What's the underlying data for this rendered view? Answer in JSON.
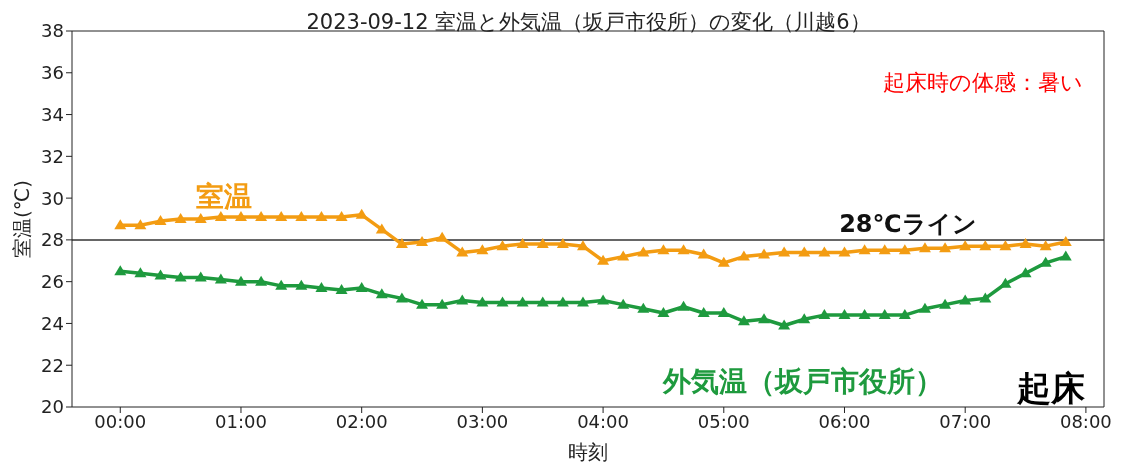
{
  "chart_data": {
    "type": "line",
    "title": "2023-09-12 室温と外気温（坂戸市役所）の変化（川越6）",
    "xlabel": "時刻",
    "ylabel": "室温(℃)",
    "x": [
      0,
      0.16667,
      0.33333,
      0.5,
      0.66667,
      0.83333,
      1,
      1.16667,
      1.33333,
      1.5,
      1.66667,
      1.83333,
      2,
      2.16667,
      2.33333,
      2.5,
      2.66667,
      2.83333,
      3,
      3.16667,
      3.33333,
      3.5,
      3.66667,
      3.83333,
      4,
      4.16667,
      4.33333,
      4.5,
      4.66667,
      4.83333,
      5,
      5.16667,
      5.33333,
      5.5,
      5.66667,
      5.83333,
      6,
      6.16667,
      6.33333,
      6.5,
      6.66667,
      6.83333,
      7,
      7.16667,
      7.33333,
      7.5,
      7.66667,
      7.83333
    ],
    "series": [
      {
        "name": "室温",
        "color": "#f39c12",
        "values": [
          28.7,
          28.7,
          28.9,
          29.0,
          29.0,
          29.1,
          29.1,
          29.1,
          29.1,
          29.1,
          29.1,
          29.1,
          29.2,
          28.5,
          27.8,
          27.9,
          28.1,
          27.4,
          27.5,
          27.7,
          27.8,
          27.8,
          27.8,
          27.7,
          27.0,
          27.2,
          27.4,
          27.5,
          27.5,
          27.3,
          26.9,
          27.2,
          27.3,
          27.4,
          27.4,
          27.4,
          27.4,
          27.5,
          27.5,
          27.5,
          27.6,
          27.6,
          27.7,
          27.7,
          27.7,
          27.8,
          27.7,
          27.9
        ]
      },
      {
        "name": "外気温（坂戸市役所）",
        "color": "#1e9a3e",
        "values": [
          26.5,
          26.4,
          26.3,
          26.2,
          26.2,
          26.1,
          26.0,
          26.0,
          25.8,
          25.8,
          25.7,
          25.6,
          25.7,
          25.4,
          25.2,
          24.9,
          24.9,
          25.1,
          25.0,
          25.0,
          25.0,
          25.0,
          25.0,
          25.0,
          25.1,
          24.9,
          24.7,
          24.5,
          24.8,
          24.5,
          24.5,
          24.1,
          24.2,
          23.9,
          24.2,
          24.4,
          24.4,
          24.4,
          24.4,
          24.4,
          24.7,
          24.9,
          25.1,
          25.2,
          25.9,
          26.4,
          26.9,
          27.2
        ]
      }
    ],
    "xlim": [
      -0.4,
      8.15
    ],
    "xticks": [
      {
        "value": 0,
        "label": "00:00"
      },
      {
        "value": 1,
        "label": "01:00"
      },
      {
        "value": 2,
        "label": "02:00"
      },
      {
        "value": 3,
        "label": "03:00"
      },
      {
        "value": 4,
        "label": "04:00"
      },
      {
        "value": 5,
        "label": "05:00"
      },
      {
        "value": 6,
        "label": "06:00"
      },
      {
        "value": 7,
        "label": "07:00"
      },
      {
        "value": 8,
        "label": "08:00"
      }
    ],
    "ylim": [
      20,
      38
    ],
    "yticks": [
      20,
      22,
      24,
      26,
      28,
      30,
      32,
      34,
      36,
      38
    ],
    "ref_lines": [
      {
        "axis": "y",
        "value": 28,
        "label": "28℃ライン",
        "color": "#333333"
      }
    ],
    "annotations": [
      "起床時の体感：暑い",
      "起床"
    ],
    "marker": "triangle",
    "legend": false,
    "grid": false
  }
}
